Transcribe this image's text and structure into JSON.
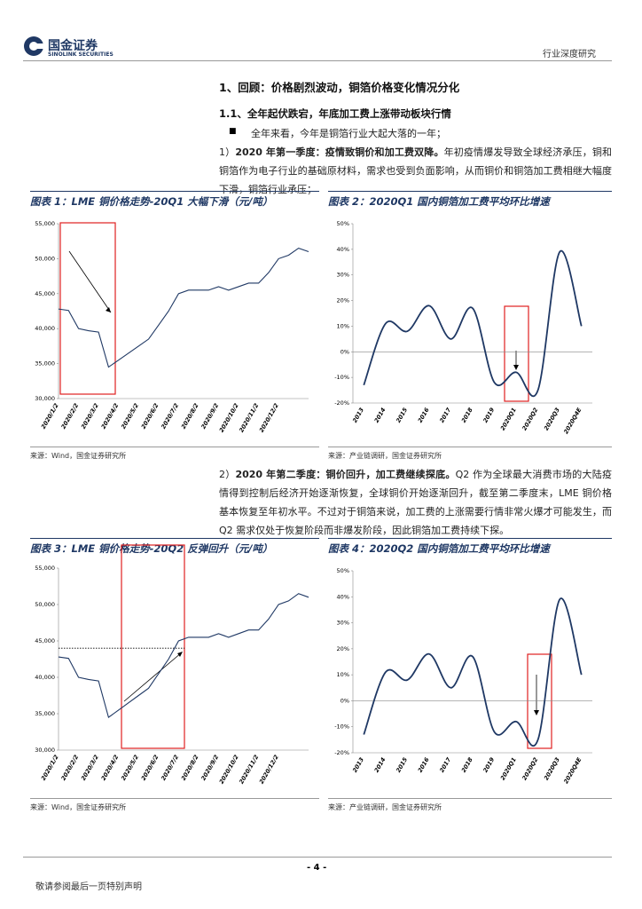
{
  "header": {
    "logo_cn": "国金证券",
    "logo_en": "SINOLINK SECURITIES",
    "report_type": "行业深度研究"
  },
  "section": {
    "heading": "1、回顾：价格剧烈波动，铜箔价格变化情况分化",
    "subheading": "1.1、全年起伏跌宕，年底加工费上涨带动板块行情",
    "bullet": "全年来看，今年是铜箔行业大起大落的一年；"
  },
  "paragraphs": [
    {
      "number": "1）",
      "lead": "2020 年第一季度：疫情致铜价和加工费双降。",
      "text": "年初疫情爆发导致全球经济承压，铜和铜箔作为电子行业的基础原材料，需求也受到负面影响，从而铜价和铜箔加工费相继大幅度下滑，铜箔行业承压；"
    },
    {
      "number": "2）",
      "lead": "2020 年第二季度：铜价回升，加工费继续探底。",
      "text": "Q2 作为全球最大消费市场的大陆疫情得到控制后经济开始逐渐恢复，全球铜价开始逐渐回升，截至第二季度末，LME 铜价格基本恢复至年初水平。不过对于铜箔来说，加工费的上涨需要行情非常火爆才可能发生，而 Q2 需求仅处于恢复阶段而非爆发阶段，因此铜箔加工费持续下探。"
    }
  ],
  "chart_data": [
    {
      "type": "line",
      "title": "图表 1：LME 铜价格走势-20Q1 大幅下滑（元/吨）",
      "source": "来源：Wind，国金证券研究所",
      "color": "#1f3864",
      "categories": [
        "2020/1/2",
        null,
        "2020/2/2",
        null,
        "2020/3/2",
        null,
        "2020/4/2",
        null,
        "2020/5/2",
        null,
        "2020/6/2",
        null,
        "2020/7/2",
        null,
        "2020/8/2",
        null,
        "2020/9/2",
        null,
        "2020/10/2",
        null,
        "2020/11/2",
        null,
        "2020/12/2",
        null,
        null,
        null
      ],
      "values": [
        42800,
        42600,
        40000,
        39700,
        39500,
        34500,
        35500,
        36500,
        37500,
        38500,
        40500,
        42500,
        45000,
        45500,
        45500,
        45500,
        46000,
        45500,
        46000,
        46500,
        46500,
        48000,
        50000,
        50500,
        51500,
        51000
      ],
      "ylim": [
        30000,
        55000
      ],
      "yticks": [
        {
          "value": 30000,
          "label": "30,000"
        },
        {
          "value": 35000,
          "label": "35,000"
        },
        {
          "value": 40000,
          "label": "40,000"
        },
        {
          "value": 45000,
          "label": "45,000"
        },
        {
          "value": 50000,
          "label": "50,000"
        },
        {
          "value": 55000,
          "label": "55,000"
        }
      ]
    },
    {
      "type": "line",
      "smooth": true,
      "title": "图表 2：2020Q1 国内铜箔加工费平均环比增速",
      "source": "来源：产业链调研，国金证券研究所",
      "color": "#1f3864",
      "categories": [
        "2013",
        "2014",
        "2015",
        "2016",
        "2017",
        "2018",
        "2019",
        "2020Q1",
        "2020Q2",
        "2020Q3",
        "2020Q4E"
      ],
      "values": [
        -13,
        11,
        8,
        18,
        5,
        17,
        -12,
        -8,
        -15,
        39,
        10
      ],
      "ylim": [
        -20,
        50
      ],
      "yticks": [
        {
          "value": -20,
          "label": "-20%"
        },
        {
          "value": -10,
          "label": "-10%"
        },
        {
          "value": 0,
          "label": "0%"
        },
        {
          "value": 10,
          "label": "10%"
        },
        {
          "value": 20,
          "label": "20%"
        },
        {
          "value": 30,
          "label": "30%"
        },
        {
          "value": 40,
          "label": "40%"
        },
        {
          "value": 50,
          "label": "50%"
        }
      ]
    },
    {
      "type": "line",
      "title": "图表 3：LME 铜价格走势-20Q2 反弹回升（元/吨）",
      "source": "来源：Wind，国金证券研究所",
      "color": "#1f3864",
      "hline": 44000,
      "categories": [
        "2020/1/2",
        null,
        "2020/2/2",
        null,
        "2020/3/2",
        null,
        "2020/4/2",
        null,
        "2020/5/2",
        null,
        "2020/6/2",
        null,
        "2020/7/2",
        null,
        "2020/8/2",
        null,
        "2020/9/2",
        null,
        "2020/10/2",
        null,
        "2020/11/2",
        null,
        "2020/12/2",
        null,
        null,
        null
      ],
      "values": [
        42800,
        42600,
        40000,
        39700,
        39500,
        34500,
        35500,
        36500,
        37500,
        38500,
        40500,
        42500,
        45000,
        45500,
        45500,
        45500,
        46000,
        45500,
        46000,
        46500,
        46500,
        48000,
        50000,
        50500,
        51500,
        51000
      ],
      "ylim": [
        30000,
        55000
      ],
      "yticks": [
        {
          "value": 30000,
          "label": "30,000"
        },
        {
          "value": 35000,
          "label": "35,000"
        },
        {
          "value": 40000,
          "label": "40,000"
        },
        {
          "value": 45000,
          "label": "45,000"
        },
        {
          "value": 50000,
          "label": "50,000"
        },
        {
          "value": 55000,
          "label": "55,000"
        }
      ]
    },
    {
      "type": "line",
      "smooth": true,
      "title": "图表 4：2020Q2 国内铜箔加工费平均环比增速",
      "source": "来源：产业链调研，国金证券研究所",
      "color": "#1f3864",
      "categories": [
        "2013",
        "2014",
        "2015",
        "2016",
        "2017",
        "2018",
        "2019",
        "2020Q1",
        "2020Q2",
        "2020Q3",
        "2020Q4E"
      ],
      "values": [
        -13,
        11,
        8,
        18,
        5,
        17,
        -12,
        -8,
        -15,
        39,
        10
      ],
      "ylim": [
        -20,
        50
      ],
      "yticks": [
        {
          "value": -20,
          "label": "-20%"
        },
        {
          "value": -10,
          "label": "-10%"
        },
        {
          "value": 0,
          "label": "0%"
        },
        {
          "value": 10,
          "label": "10%"
        },
        {
          "value": 20,
          "label": "20%"
        },
        {
          "value": 30,
          "label": "30%"
        },
        {
          "value": 40,
          "label": "40%"
        },
        {
          "value": 50,
          "label": "50%"
        }
      ]
    }
  ],
  "footer": {
    "page": "- 4 -",
    "disclaimer": "敬请参阅最后一页特别声明"
  }
}
